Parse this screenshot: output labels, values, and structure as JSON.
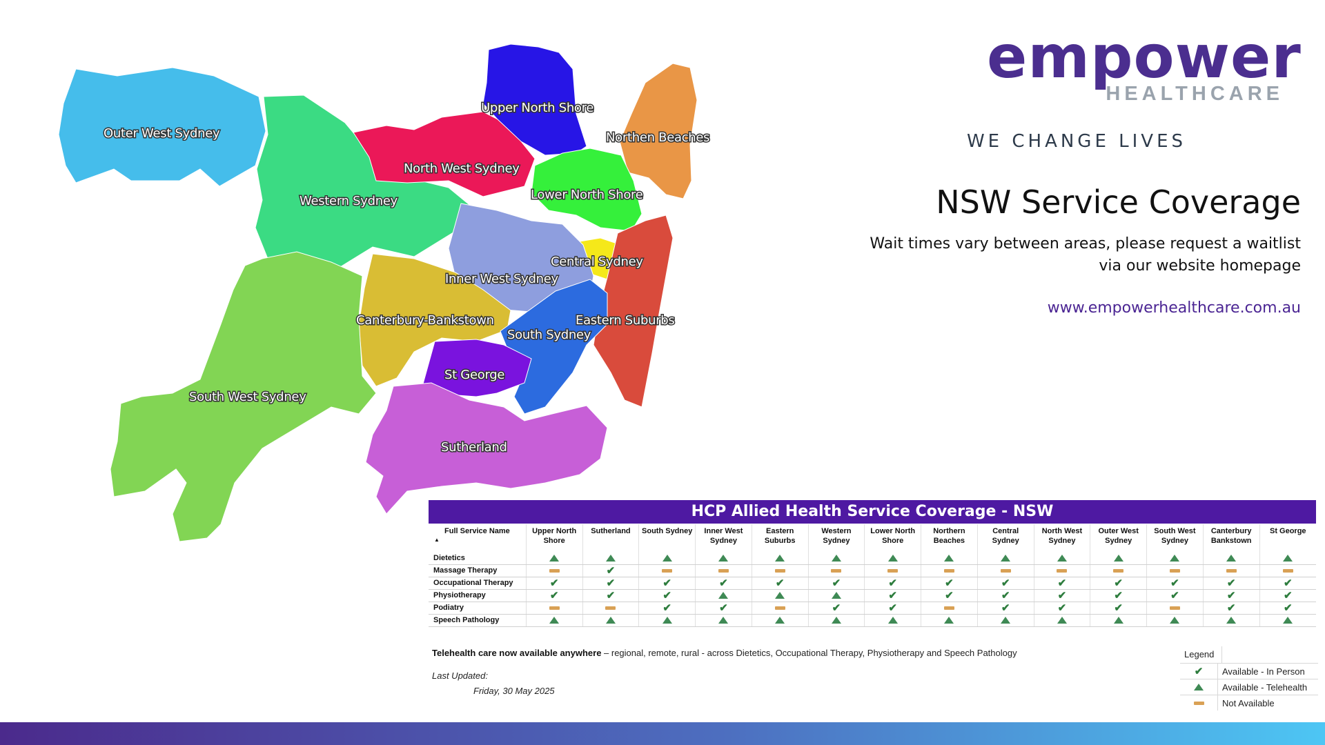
{
  "map": {
    "regions": [
      {
        "label": "Outer West Sydney",
        "color": "#45bdeb"
      },
      {
        "label": "Western Sydney",
        "color": "#3bdb83"
      },
      {
        "label": "North West Sydney",
        "color": "#eb1858"
      },
      {
        "label": "Upper North Shore",
        "color": "#2715e6"
      },
      {
        "label": "Northen Beaches",
        "color": "#e99646"
      },
      {
        "label": "Lower North Shore",
        "color": "#35f03b"
      },
      {
        "label": "Central Sydney",
        "color": "#f5e81a"
      },
      {
        "label": "Inner West Sydney",
        "color": "#8e9ede"
      },
      {
        "label": "Canterbury-Bankstown",
        "color": "#d9bd34"
      },
      {
        "label": "Eastern Suburbs",
        "color": "#d94b3c"
      },
      {
        "label": "South Sydney",
        "color": "#2c6bdf"
      },
      {
        "label": "St George",
        "color": "#7a13de"
      },
      {
        "label": "Sutherland",
        "color": "#c75fd7"
      },
      {
        "label": "South West Sydney",
        "color": "#82d554"
      }
    ]
  },
  "brand": {
    "logo_main": "empower",
    "logo_sub": "HEALTHCARE",
    "tagline": "WE CHANGE LIVES",
    "primary_color": "#4b2e8f",
    "secondary_color": "#9aa3ad"
  },
  "header": {
    "title": "NSW Service Coverage",
    "subtitle_line1": "Wait times vary between areas, please request a waitlist",
    "subtitle_line2": "via our website homepage",
    "website": "www.empowerhealthcare.com.au"
  },
  "coverage": {
    "banner": "HCP Allied Health Service Coverage - NSW",
    "banner_color": "#4e19a2",
    "columns": [
      "Full Service Name",
      "Upper North Shore",
      "Sutherland",
      "South Sydney",
      "Inner West Sydney",
      "Eastern Suburbs",
      "Western Sydney",
      "Lower North Shore",
      "Northern Beaches",
      "Central Sydney",
      "North West Sydney",
      "Outer West Sydney",
      "South West Sydney",
      "Canterbury Bankstown",
      "St George"
    ],
    "sort_indicator": "▲",
    "rows": [
      {
        "service": "Dietetics",
        "cells": [
          "triangle",
          "triangle",
          "triangle",
          "triangle",
          "triangle",
          "triangle",
          "triangle",
          "triangle",
          "triangle",
          "triangle",
          "triangle",
          "triangle",
          "triangle",
          "triangle"
        ]
      },
      {
        "service": "Massage Therapy",
        "cells": [
          "dash",
          "check",
          "dash",
          "dash",
          "dash",
          "dash",
          "dash",
          "dash",
          "dash",
          "dash",
          "dash",
          "dash",
          "dash",
          "dash"
        ]
      },
      {
        "service": "Occupational Therapy",
        "cells": [
          "check",
          "check",
          "check",
          "check",
          "check",
          "check",
          "check",
          "check",
          "check",
          "check",
          "check",
          "check",
          "check",
          "check"
        ]
      },
      {
        "service": "Physiotherapy",
        "cells": [
          "check",
          "check",
          "check",
          "triangle",
          "triangle",
          "triangle",
          "check",
          "check",
          "check",
          "check",
          "check",
          "check",
          "check",
          "check"
        ]
      },
      {
        "service": "Podiatry",
        "cells": [
          "dash",
          "dash",
          "check",
          "check",
          "dash",
          "check",
          "check",
          "dash",
          "check",
          "check",
          "check",
          "dash",
          "check",
          "check"
        ]
      },
      {
        "service": "Speech Pathology",
        "cells": [
          "triangle",
          "triangle",
          "triangle",
          "triangle",
          "triangle",
          "triangle",
          "triangle",
          "triangle",
          "triangle",
          "triangle",
          "triangle",
          "triangle",
          "triangle",
          "triangle"
        ]
      }
    ]
  },
  "footer": {
    "telehealth_bold": "Telehealth care now available anywhere",
    "telehealth_rest": " – regional, remote, rural - across Dietetics, Occupational Therapy, Physiotherapy and Speech Pathology",
    "last_updated_label": "Last Updated:",
    "last_updated_date": "Friday, 30 May 2025"
  },
  "legend": {
    "title": "Legend",
    "items": [
      {
        "icon": "check",
        "label": "Available - In Person"
      },
      {
        "icon": "triangle",
        "label": "Available - Telehealth"
      },
      {
        "icon": "dash",
        "label": "Not Available"
      }
    ]
  },
  "colors": {
    "available_in_person": "#2e7d3e",
    "available_telehealth": "#3f8a55",
    "not_available": "#d9a155"
  }
}
